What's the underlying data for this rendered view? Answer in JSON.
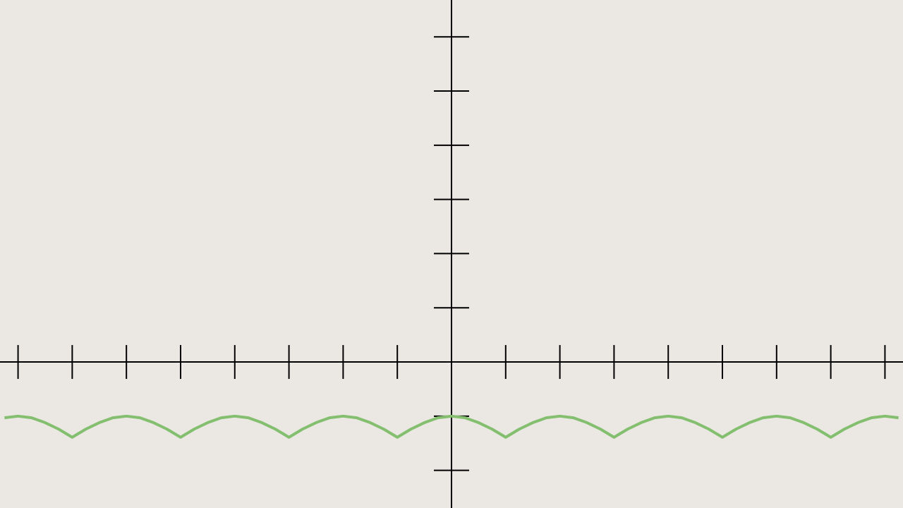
{
  "chart_data": {
    "type": "line",
    "xlim": [
      -8.333,
      8.333
    ],
    "ylim": [
      -2.695,
      6.68
    ],
    "xticks": [
      -8,
      -7,
      -6,
      -5,
      -4,
      -3,
      -2,
      -1,
      1,
      2,
      3,
      4,
      5,
      6,
      7,
      8
    ],
    "yticks": [
      -2,
      -1,
      1,
      2,
      3,
      4,
      5,
      6
    ],
    "x": [
      -8.25,
      -8,
      -7.75,
      -7.5,
      -7.25,
      -7,
      -6.75,
      -6.5,
      -6.25,
      -6,
      -5.75,
      -5.5,
      -5.25,
      -5,
      -4.75,
      -4.5,
      -4.25,
      -4,
      -3.75,
      -3.5,
      -3.25,
      -3,
      -2.75,
      -2.5,
      -2.25,
      -2,
      -1.75,
      -1.5,
      -1.25,
      -1,
      -0.75,
      -0.5,
      -0.25,
      0,
      0.25,
      0.5,
      0.75,
      1,
      1.25,
      1.5,
      1.75,
      2,
      2.25,
      2.5,
      2.75,
      3,
      3.25,
      3.5,
      3.75,
      4,
      4.25,
      4.5,
      4.75,
      5,
      5.25,
      5.5,
      5.75,
      6,
      6.25,
      6.5,
      6.75,
      7,
      7.25,
      7.5,
      7.75,
      8,
      8.25
    ],
    "series": [
      {
        "color": "#83bf6e",
        "values": [
          -1.03,
          -1,
          -1.03,
          -1.12,
          -1.24,
          -1.39,
          -1.24,
          -1.12,
          -1.03,
          -1,
          -1.03,
          -1.12,
          -1.24,
          -1.39,
          -1.24,
          -1.12,
          -1.03,
          -1,
          -1.03,
          -1.12,
          -1.24,
          -1.39,
          -1.24,
          -1.12,
          -1.03,
          -1,
          -1.03,
          -1.12,
          -1.24,
          -1.39,
          -1.24,
          -1.12,
          -1.03,
          -1,
          -1.03,
          -1.12,
          -1.24,
          -1.39,
          -1.24,
          -1.12,
          -1.03,
          -1,
          -1.03,
          -1.12,
          -1.24,
          -1.39,
          -1.24,
          -1.12,
          -1.03,
          -1,
          -1.03,
          -1.12,
          -1.24,
          -1.39,
          -1.24,
          -1.12,
          -1.03,
          -1,
          -1.03,
          -1.12,
          -1.24,
          -1.39,
          -1.24,
          -1.12,
          -1.03,
          -1,
          -1.03
        ]
      }
    ]
  }
}
